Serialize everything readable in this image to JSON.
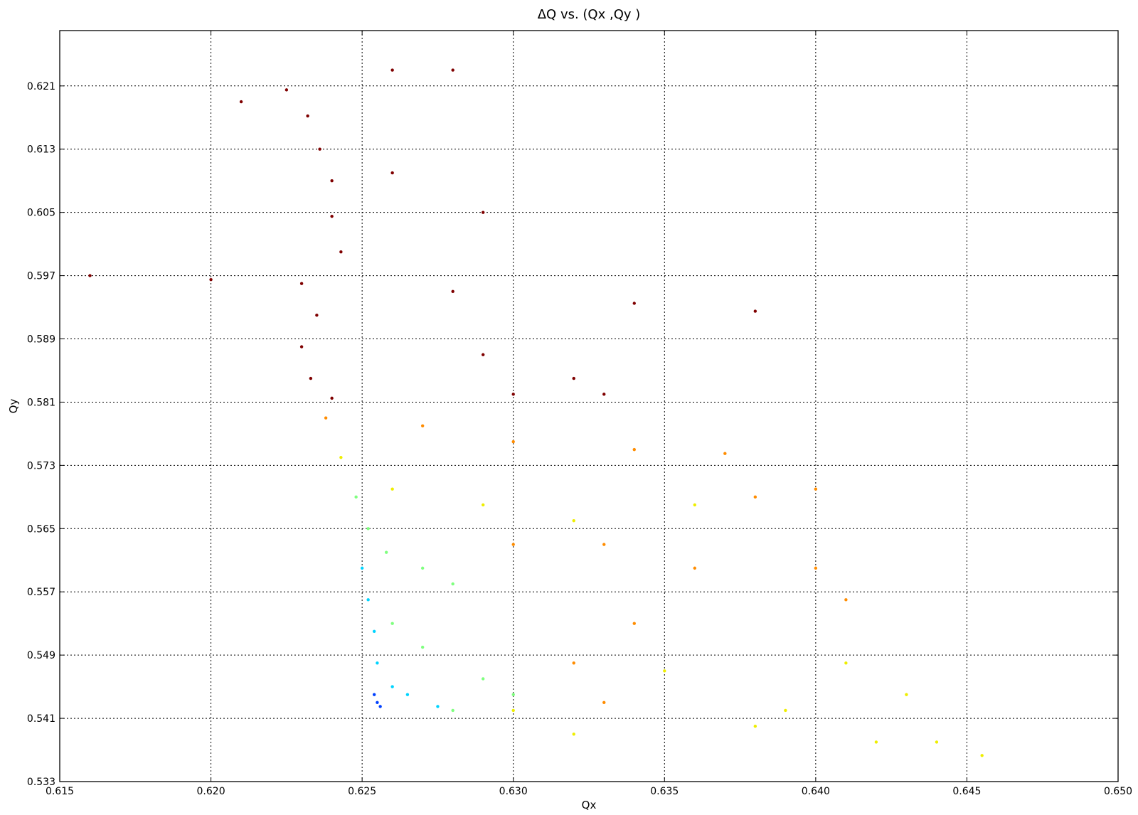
{
  "chart_data": {
    "type": "scatter",
    "title": "ΔQ vs. (Qx ,Qy )",
    "xlabel": "Qx",
    "ylabel": "Qy",
    "xlim": [
      0.615,
      0.65
    ],
    "ylim": [
      0.533,
      0.628
    ],
    "x_ticks": [
      "0.615",
      "0.620",
      "0.625",
      "0.630",
      "0.635",
      "0.640",
      "0.645",
      "0.650"
    ],
    "y_ticks": [
      "0.533",
      "0.541",
      "0.549",
      "0.557",
      "0.565",
      "0.573",
      "0.581",
      "0.589",
      "0.597",
      "0.605",
      "0.613",
      "0.621"
    ],
    "grid": true,
    "colormap": "jet",
    "colors": {
      "dark_red": "#7f0000",
      "red": "#e0301e",
      "orange": "#ff8c00",
      "yellow": "#eeee00",
      "green": "#7fff7f",
      "cyan": "#00d4ff",
      "blue": "#0040ff"
    },
    "series": [
      {
        "points": [
          [
            0.6225,
            0.6205
          ],
          [
            0.6232,
            0.6172
          ],
          [
            0.6236,
            0.613
          ],
          [
            0.624,
            0.609
          ],
          [
            0.624,
            0.6045
          ],
          [
            0.6243,
            0.6
          ],
          [
            0.623,
            0.596
          ],
          [
            0.6235,
            0.592
          ],
          [
            0.623,
            0.588
          ],
          [
            0.6233,
            0.584
          ],
          [
            0.624,
            0.5815
          ],
          [
            0.63,
            0.582
          ],
          [
            0.629,
            0.587
          ],
          [
            0.632,
            0.584
          ],
          [
            0.633,
            0.582
          ],
          [
            0.62,
            0.5965
          ],
          [
            0.628,
            0.595
          ],
          [
            0.634,
            0.5935
          ],
          [
            0.638,
            0.5925
          ],
          [
            0.616,
            0.597
          ],
          [
            0.621,
            0.619
          ],
          [
            0.626,
            0.623
          ],
          [
            0.628,
            0.623
          ],
          [
            0.629,
            0.605
          ],
          [
            0.626,
            0.61
          ]
        ]
      },
      {
        "points": [
          [
            0.6238,
            0.579
          ],
          [
            0.627,
            0.578
          ],
          [
            0.63,
            0.576
          ],
          [
            0.634,
            0.575
          ],
          [
            0.637,
            0.5745
          ],
          [
            0.64,
            0.57
          ],
          [
            0.638,
            0.569
          ],
          [
            0.633,
            0.563
          ],
          [
            0.63,
            0.563
          ],
          [
            0.636,
            0.56
          ],
          [
            0.634,
            0.553
          ],
          [
            0.632,
            0.548
          ],
          [
            0.633,
            0.543
          ],
          [
            0.64,
            0.56
          ],
          [
            0.641,
            0.556
          ]
        ]
      },
      {
        "points": [
          [
            0.6243,
            0.574
          ],
          [
            0.626,
            0.57
          ],
          [
            0.629,
            0.568
          ],
          [
            0.632,
            0.566
          ],
          [
            0.636,
            0.568
          ],
          [
            0.641,
            0.548
          ],
          [
            0.643,
            0.544
          ],
          [
            0.644,
            0.538
          ],
          [
            0.639,
            0.542
          ],
          [
            0.635,
            0.547
          ],
          [
            0.638,
            0.54
          ],
          [
            0.642,
            0.538
          ],
          [
            0.6455,
            0.5363
          ],
          [
            0.63,
            0.542
          ],
          [
            0.632,
            0.539
          ]
        ]
      },
      {
        "points": [
          [
            0.6248,
            0.569
          ],
          [
            0.6252,
            0.565
          ],
          [
            0.6258,
            0.562
          ],
          [
            0.627,
            0.56
          ],
          [
            0.628,
            0.558
          ],
          [
            0.626,
            0.553
          ],
          [
            0.627,
            0.55
          ],
          [
            0.629,
            0.546
          ],
          [
            0.63,
            0.544
          ],
          [
            0.628,
            0.542
          ]
        ]
      },
      {
        "points": [
          [
            0.625,
            0.56
          ],
          [
            0.6252,
            0.556
          ],
          [
            0.6254,
            0.552
          ],
          [
            0.6255,
            0.548
          ],
          [
            0.6265,
            0.544
          ],
          [
            0.6275,
            0.5425
          ],
          [
            0.626,
            0.545
          ]
        ]
      },
      {
        "points": [
          [
            0.6254,
            0.544
          ],
          [
            0.6255,
            0.543
          ],
          [
            0.6256,
            0.5425
          ]
        ]
      }
    ]
  }
}
